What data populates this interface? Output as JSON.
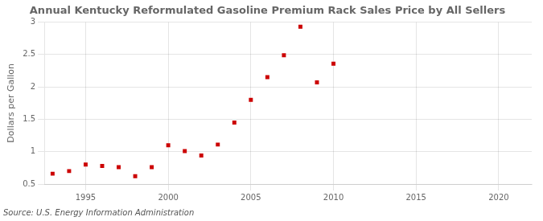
{
  "chart_data": {
    "type": "scatter",
    "title": "Annual Kentucky Reformulated Gasoline Premium Rack Sales Price by All Sellers",
    "ylabel": "Dollars per Gallon",
    "annotations": [
      "Source: U.S. Energy Information Administration"
    ],
    "x": [
      1993,
      1994,
      1995,
      1996,
      1997,
      1998,
      1999,
      2000,
      2001,
      2002,
      2003,
      2004,
      2005,
      2006,
      2007,
      2008,
      2009,
      2010
    ],
    "values": [
      0.66,
      0.7,
      0.8,
      0.78,
      0.76,
      0.62,
      0.76,
      1.1,
      1.01,
      0.94,
      1.11,
      1.45,
      1.8,
      2.15,
      2.49,
      2.93,
      2.07,
      2.36
    ],
    "color": "#cc0000",
    "marker": "square",
    "xlim": [
      1992.5,
      2022
    ],
    "ylim": [
      0.5,
      3.0
    ],
    "xticks": [
      1995,
      2000,
      2005,
      2010,
      2015,
      2020
    ],
    "yticks": [
      0.5,
      1.0,
      1.5,
      2.0,
      2.5,
      3.0
    ],
    "grid": true
  }
}
